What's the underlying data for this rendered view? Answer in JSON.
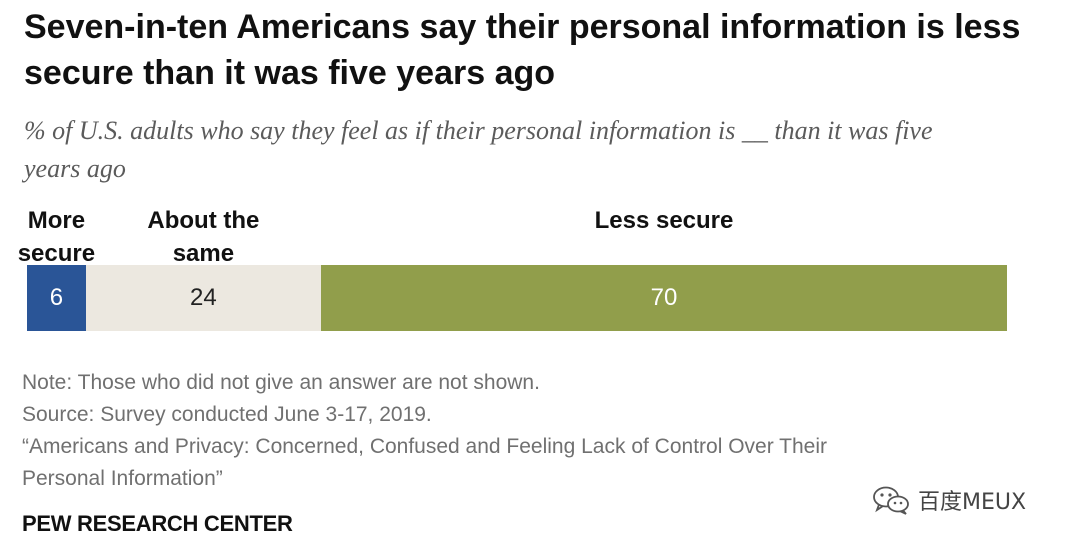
{
  "title": "Seven-in-ten Americans say their personal information is less secure than it was five years ago",
  "subtitle": "% of U.S. adults who say they feel as if their personal information is __ than it was five years ago",
  "chart_data": {
    "type": "bar",
    "stacked": true,
    "orientation": "horizontal",
    "categories": [
      "More secure",
      "About the same",
      "Less secure"
    ],
    "values": [
      6,
      24,
      70
    ],
    "value_labels": [
      "6",
      "24",
      "70"
    ],
    "colors": [
      "#2a5597",
      "#ece8e0",
      "#919e4b"
    ],
    "label_colors": [
      "#ffffff",
      "#222222",
      "#ffffff"
    ],
    "xlim": [
      0,
      100
    ],
    "grid": false,
    "legend": "none"
  },
  "notes": {
    "note": "Note: Those who did not give an answer are not shown.",
    "source": "Source: Survey conducted June 3-17, 2019.",
    "report_line1": "“Americans and Privacy: Concerned, Confused and Feeling Lack of Control Over Their",
    "report_line2": "Personal Information”"
  },
  "organization": "PEW RESEARCH CENTER",
  "watermark": {
    "icon": "wechat-icon",
    "text": "百度MEUX"
  }
}
